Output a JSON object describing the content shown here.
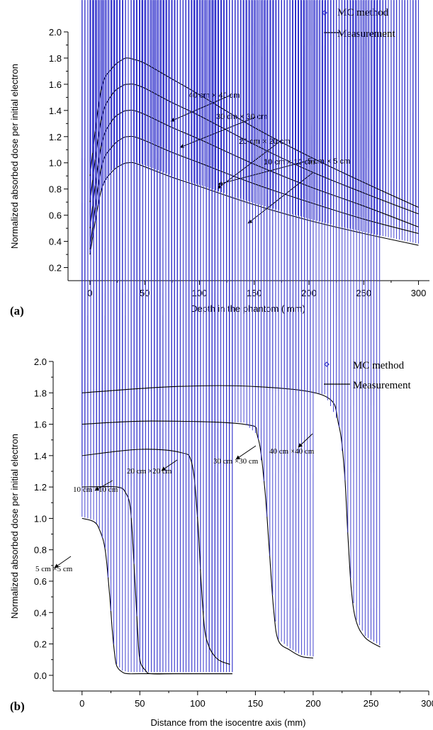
{
  "chart_data": [
    {
      "type": "line",
      "panel_label": "(a)",
      "xlabel": "Depth in the phantom  ( mm)",
      "ylabel": "Normalized absorbed dose per initial electron",
      "xlim": [
        -20,
        310
      ],
      "ylim": [
        0.1,
        2.0
      ],
      "xticks": [
        0,
        50,
        100,
        150,
        200,
        250,
        300
      ],
      "yticks": [
        0.2,
        0.4,
        0.6,
        0.8,
        1.0,
        1.2,
        1.4,
        1.6,
        1.8,
        2.0
      ],
      "legend": {
        "position": "top-right",
        "entries": [
          {
            "label": "MC method",
            "marker": "open-diamond",
            "color": "#3333cc"
          },
          {
            "label": "Measurement",
            "marker": "line",
            "color": "#000000"
          }
        ]
      },
      "series": [
        {
          "field": "5 cm × 5 cm",
          "x": [
            0,
            10,
            20,
            30,
            35,
            40,
            50,
            75,
            100,
            150,
            200,
            250,
            300
          ],
          "y": [
            0.3,
            0.78,
            0.93,
            0.99,
            1.0,
            1.0,
            0.97,
            0.89,
            0.82,
            0.68,
            0.56,
            0.46,
            0.37
          ]
        },
        {
          "field": "10 cm × 10 cm",
          "x": [
            0,
            10,
            20,
            30,
            35,
            40,
            50,
            75,
            100,
            150,
            200,
            250,
            300
          ],
          "y": [
            0.34,
            0.95,
            1.12,
            1.19,
            1.2,
            1.2,
            1.17,
            1.08,
            1.0,
            0.84,
            0.7,
            0.57,
            0.46
          ]
        },
        {
          "field": "20 cm × 20 cm",
          "x": [
            0,
            10,
            20,
            30,
            35,
            40,
            50,
            75,
            100,
            150,
            200,
            250,
            300
          ],
          "y": [
            0.5,
            1.12,
            1.32,
            1.39,
            1.4,
            1.4,
            1.37,
            1.27,
            1.18,
            0.99,
            0.82,
            0.67,
            0.51
          ]
        },
        {
          "field": "30 cm × 30 cm",
          "x": [
            0,
            10,
            20,
            30,
            35,
            40,
            50,
            75,
            100,
            150,
            200,
            250,
            300
          ],
          "y": [
            0.7,
            1.32,
            1.52,
            1.59,
            1.6,
            1.6,
            1.57,
            1.46,
            1.36,
            1.14,
            0.94,
            0.77,
            0.61
          ]
        },
        {
          "field": "40 cm × 40 cm",
          "x": [
            0,
            10,
            20,
            30,
            35,
            40,
            50,
            75,
            100,
            150,
            200,
            250,
            300
          ],
          "y": [
            0.9,
            1.55,
            1.72,
            1.79,
            1.8,
            1.79,
            1.76,
            1.64,
            1.52,
            1.27,
            1.05,
            0.85,
            0.66
          ]
        }
      ],
      "annotations": [
        {
          "text": "40 cm × 40 cm",
          "series": "40 cm × 40 cm"
        },
        {
          "text": "30 cm × 30 cm",
          "series": "30 cm × 30 cm"
        },
        {
          "text": "20 cm × 20 cm",
          "series": "20 cm × 20 cm"
        },
        {
          "text": "10 cm × 10 cm",
          "series": "10 cm × 10 cm"
        },
        {
          "text": "5 cm × 5 cm",
          "series": "5 cm × 5 cm"
        }
      ]
    },
    {
      "type": "line",
      "panel_label": "(b)",
      "xlabel": "Distance from the isocentre axis  (mm)",
      "ylabel": "Normalized absorbed dose per initial electron",
      "xlim": [
        -25,
        300
      ],
      "ylim": [
        -0.1,
        2.0
      ],
      "xticks": [
        0,
        50,
        100,
        150,
        200,
        250,
        300
      ],
      "yticks": [
        0.0,
        0.2,
        0.4,
        0.6,
        0.8,
        1.0,
        1.2,
        1.4,
        1.6,
        1.8,
        2.0
      ],
      "legend": {
        "position": "top-right",
        "entries": [
          {
            "label": "MC method",
            "marker": "open-diamond",
            "color": "#3333cc"
          },
          {
            "label": "Measurement",
            "marker": "line",
            "color": "#000000"
          }
        ]
      },
      "series": [
        {
          "field": "5 cm ×5 cm",
          "x": [
            0,
            10,
            15,
            20,
            24,
            26,
            28,
            30,
            35,
            40,
            50,
            80,
            130
          ],
          "y": [
            1.0,
            0.98,
            0.93,
            0.8,
            0.5,
            0.3,
            0.15,
            0.06,
            0.02,
            0.01,
            0.01,
            0.01,
            0.01
          ]
        },
        {
          "field": "10 cm ×10 cm",
          "x": [
            0,
            30,
            38,
            42,
            45,
            48,
            50,
            55,
            60,
            80,
            130
          ],
          "y": [
            1.2,
            1.2,
            1.16,
            1.05,
            0.7,
            0.3,
            0.1,
            0.03,
            0.01,
            0.01,
            0.01
          ]
        },
        {
          "field": "20 cm ×20 cm",
          "x": [
            0,
            50,
            85,
            95,
            100,
            103,
            106,
            110,
            115,
            120,
            128
          ],
          "y": [
            1.4,
            1.44,
            1.42,
            1.35,
            1.0,
            0.6,
            0.3,
            0.18,
            0.12,
            0.09,
            0.07
          ]
        },
        {
          "field": "30 cm ×30 cm",
          "x": [
            0,
            60,
            140,
            152,
            158,
            162,
            166,
            170,
            180,
            190,
            200
          ],
          "y": [
            1.6,
            1.62,
            1.6,
            1.52,
            1.2,
            0.8,
            0.4,
            0.22,
            0.16,
            0.12,
            0.11
          ]
        },
        {
          "field": "40 cm ×40 cm",
          "x": [
            0,
            80,
            150,
            210,
            222,
            227,
            230,
            233,
            237,
            245,
            258
          ],
          "y": [
            1.8,
            1.84,
            1.84,
            1.78,
            1.6,
            1.3,
            0.9,
            0.55,
            0.35,
            0.24,
            0.18
          ]
        }
      ],
      "annotations": [
        {
          "text": "40 cm ×40 cm",
          "series": "40 cm ×40 cm"
        },
        {
          "text": "30 cm ×30 cm",
          "series": "30 cm ×30 cm"
        },
        {
          "text": "20 cm ×20 cm",
          "series": "20 cm ×20 cm"
        },
        {
          "text": "10 cm ×10 cm",
          "series": "10 cm ×10 cm"
        },
        {
          "text": "5 cm ×5 cm",
          "series": "5 cm ×5 cm"
        }
      ]
    }
  ]
}
